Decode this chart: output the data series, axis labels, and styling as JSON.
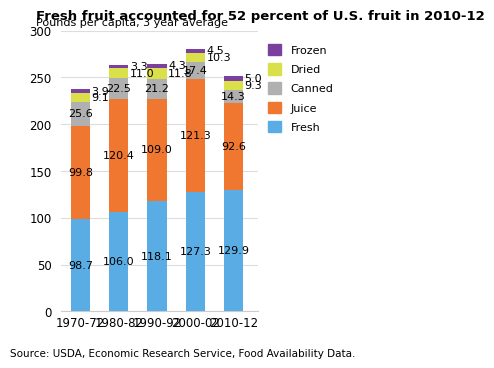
{
  "title": "Fresh fruit accounted for 52 percent of U.S. fruit in 2010-12",
  "ylabel": "Pounds per capita, 3 year average",
  "source": "Source: USDA, Economic Research Service, Food Availability Data.",
  "categories": [
    "1970-72",
    "1980-82",
    "1990-92",
    "2000-02",
    "2010-12"
  ],
  "series": {
    "Fresh": [
      98.7,
      106.0,
      118.1,
      127.3,
      129.9
    ],
    "Juice": [
      99.8,
      120.4,
      109.0,
      121.3,
      92.6
    ],
    "Canned": [
      25.6,
      22.5,
      21.2,
      17.4,
      14.3
    ],
    "Dried": [
      9.1,
      11.0,
      11.8,
      10.3,
      9.3
    ],
    "Frozen": [
      3.9,
      3.3,
      4.3,
      4.5,
      5.0
    ]
  },
  "colors": {
    "Fresh": "#5aace4",
    "Juice": "#f07730",
    "Canned": "#b0b0b0",
    "Dried": "#d9e04a",
    "Frozen": "#7b3f9e"
  },
  "ylim": [
    0,
    300
  ],
  "yticks": [
    0,
    50,
    100,
    150,
    200,
    250,
    300
  ],
  "legend_order": [
    "Frozen",
    "Dried",
    "Canned",
    "Juice",
    "Fresh"
  ],
  "stack_order": [
    "Fresh",
    "Juice",
    "Canned",
    "Dried",
    "Frozen"
  ],
  "bar_width": 0.5,
  "title_fontsize": 9.5,
  "label_fontsize": 8,
  "tick_fontsize": 8.5,
  "source_fontsize": 7.5
}
